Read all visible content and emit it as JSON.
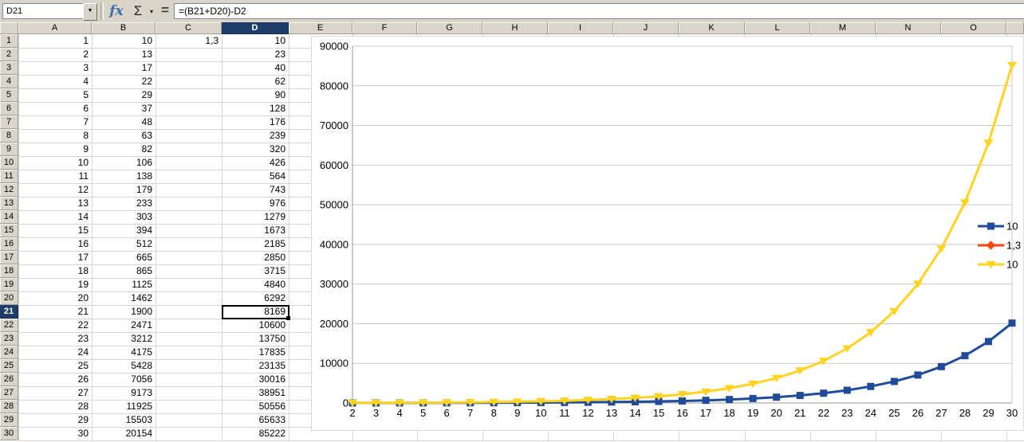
{
  "formula_bar": {
    "name_box": "D21",
    "formula": "=(B21+D20)-D2",
    "icons": {
      "fx": "fx",
      "sum": "Σ",
      "dropdown_small": "▾",
      "namebox_dropdown": "▼",
      "equals": "="
    }
  },
  "sheet": {
    "col_headers": [
      "A",
      "B",
      "C",
      "D",
      "E",
      "F",
      "G",
      "H",
      "I",
      "J",
      "K",
      "L",
      "M",
      "N",
      "O",
      ""
    ],
    "selected_column": "D",
    "selected_row": 21,
    "selected_cell": "D21",
    "rows": [
      {
        "row": 1,
        "A": "1",
        "B": "10",
        "C": "1,3",
        "D": "10"
      },
      {
        "row": 2,
        "A": "2",
        "B": "13",
        "C": "",
        "D": "23"
      },
      {
        "row": 3,
        "A": "3",
        "B": "17",
        "C": "",
        "D": "40"
      },
      {
        "row": 4,
        "A": "4",
        "B": "22",
        "C": "",
        "D": "62"
      },
      {
        "row": 5,
        "A": "5",
        "B": "29",
        "C": "",
        "D": "90"
      },
      {
        "row": 6,
        "A": "6",
        "B": "37",
        "C": "",
        "D": "128"
      },
      {
        "row": 7,
        "A": "7",
        "B": "48",
        "C": "",
        "D": "176"
      },
      {
        "row": 8,
        "A": "8",
        "B": "63",
        "C": "",
        "D": "239"
      },
      {
        "row": 9,
        "A": "9",
        "B": "82",
        "C": "",
        "D": "320"
      },
      {
        "row": 10,
        "A": "10",
        "B": "106",
        "C": "",
        "D": "426"
      },
      {
        "row": 11,
        "A": "11",
        "B": "138",
        "C": "",
        "D": "564"
      },
      {
        "row": 12,
        "A": "12",
        "B": "179",
        "C": "",
        "D": "743"
      },
      {
        "row": 13,
        "A": "13",
        "B": "233",
        "C": "",
        "D": "976"
      },
      {
        "row": 14,
        "A": "14",
        "B": "303",
        "C": "",
        "D": "1279"
      },
      {
        "row": 15,
        "A": "15",
        "B": "394",
        "C": "",
        "D": "1673"
      },
      {
        "row": 16,
        "A": "16",
        "B": "512",
        "C": "",
        "D": "2185"
      },
      {
        "row": 17,
        "A": "17",
        "B": "665",
        "C": "",
        "D": "2850"
      },
      {
        "row": 18,
        "A": "18",
        "B": "865",
        "C": "",
        "D": "3715"
      },
      {
        "row": 19,
        "A": "19",
        "B": "1125",
        "C": "",
        "D": "4840"
      },
      {
        "row": 20,
        "A": "20",
        "B": "1462",
        "C": "",
        "D": "6292"
      },
      {
        "row": 21,
        "A": "21",
        "B": "1900",
        "C": "",
        "D": "8169"
      },
      {
        "row": 22,
        "A": "22",
        "B": "2471",
        "C": "",
        "D": "10600"
      },
      {
        "row": 23,
        "A": "23",
        "B": "3212",
        "C": "",
        "D": "13750"
      },
      {
        "row": 24,
        "A": "24",
        "B": "4175",
        "C": "",
        "D": "17835"
      },
      {
        "row": 25,
        "A": "25",
        "B": "5428",
        "C": "",
        "D": "23135"
      },
      {
        "row": 26,
        "A": "26",
        "B": "7056",
        "C": "",
        "D": "30016"
      },
      {
        "row": 27,
        "A": "27",
        "B": "9173",
        "C": "",
        "D": "38951"
      },
      {
        "row": 28,
        "A": "28",
        "B": "11925",
        "C": "",
        "D": "50556"
      },
      {
        "row": 29,
        "A": "29",
        "B": "15503",
        "C": "",
        "D": "65633"
      },
      {
        "row": 30,
        "A": "30",
        "B": "20154",
        "C": "",
        "D": "85222"
      }
    ]
  },
  "colors": {
    "selected_header_bg": "#1E3C69",
    "header_bg": "#D9D5CA",
    "gridline": "#D6D6D6"
  },
  "chart_data": {
    "type": "line",
    "title": "",
    "xlabel": "",
    "ylabel": "",
    "x": [
      2,
      3,
      4,
      5,
      6,
      7,
      8,
      9,
      10,
      11,
      12,
      13,
      14,
      15,
      16,
      17,
      18,
      19,
      20,
      21,
      22,
      23,
      24,
      25,
      26,
      27,
      28,
      29,
      30
    ],
    "ylim": [
      0,
      90000
    ],
    "ytick_step": 10000,
    "grid": true,
    "legend_position": "right-overlay",
    "series": [
      {
        "name": "10",
        "color": "#1F4B99",
        "marker": "square",
        "values": [
          13,
          17,
          22,
          29,
          37,
          48,
          63,
          82,
          106,
          138,
          179,
          233,
          303,
          394,
          512,
          665,
          865,
          1125,
          1462,
          1900,
          2471,
          3212,
          4175,
          5428,
          7056,
          9173,
          11925,
          15503,
          20154
        ]
      },
      {
        "name": "1,3",
        "color": "#FF420E",
        "marker": "diamond",
        "values": []
      },
      {
        "name": "10",
        "color": "#FFD320",
        "marker": "triangle-down",
        "values": [
          23,
          40,
          62,
          90,
          128,
          176,
          239,
          320,
          426,
          564,
          743,
          976,
          1279,
          1673,
          2185,
          2850,
          3715,
          4840,
          6292,
          8169,
          10600,
          13750,
          17835,
          23135,
          30016,
          38951,
          50556,
          65633,
          85222
        ]
      }
    ]
  }
}
